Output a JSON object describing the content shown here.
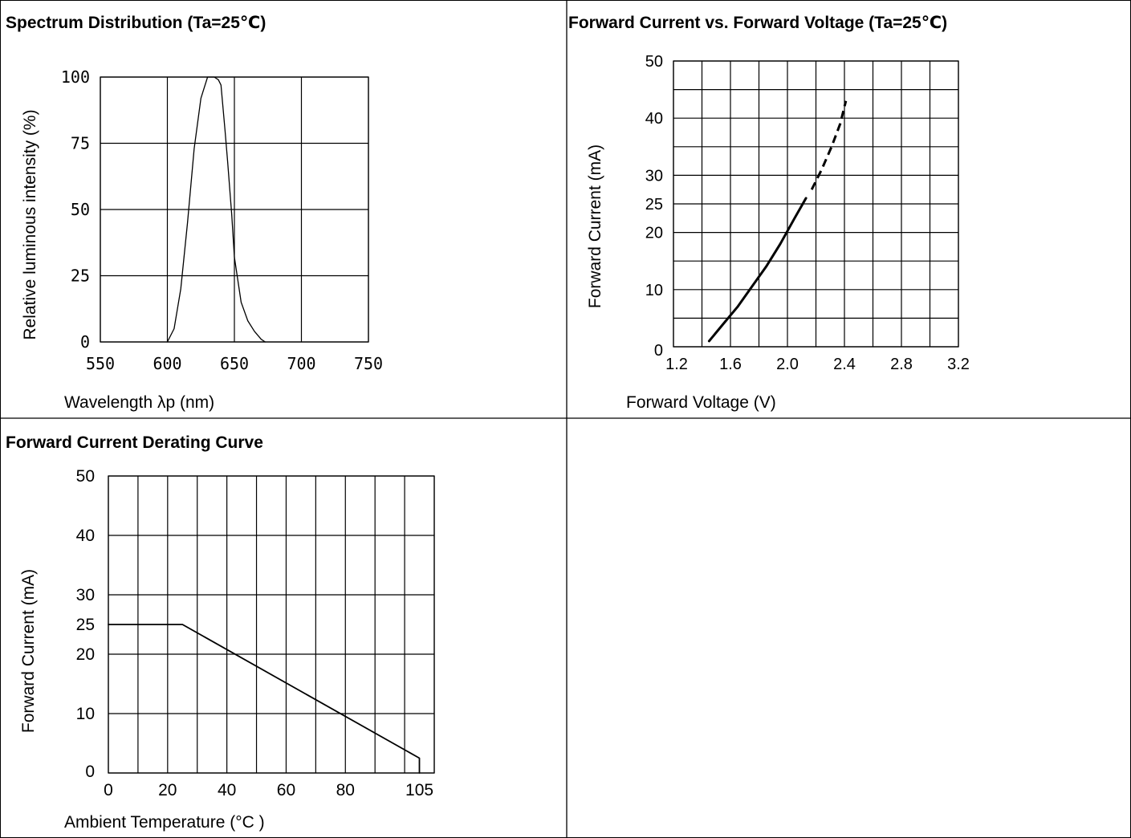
{
  "colors": {
    "background": "#ffffff",
    "ink": "#000000"
  },
  "panels": {
    "spectrum": {
      "title": "Spectrum Distribution (Ta=25℃)"
    },
    "iv": {
      "title": "Forward Current vs. Forward Voltage (Ta=25℃)"
    },
    "derating": {
      "title": "Forward Current Derating Curve"
    }
  },
  "chart_data": [
    {
      "type": "line",
      "title": "Spectrum Distribution (Ta=25℃)",
      "xlabel": "Wavelength λp (nm)",
      "ylabel": "Relative luminous intensity (%)",
      "xlim": [
        550,
        750
      ],
      "ylim": [
        0,
        100
      ],
      "xticks": [
        "550",
        "600",
        "650",
        "700",
        "750"
      ],
      "yticks": [
        "0",
        "25",
        "50",
        "75",
        "100"
      ],
      "grid": true,
      "series": [
        {
          "x": [
            600,
            605,
            610,
            615,
            620,
            625,
            630,
            633,
            635,
            638,
            640,
            643,
            645,
            648,
            650,
            655,
            660,
            665,
            670,
            673
          ],
          "y": [
            0,
            5,
            20,
            45,
            73,
            92,
            100,
            100,
            100,
            99,
            97,
            80,
            68,
            48,
            32,
            15,
            8,
            4,
            1,
            0
          ]
        }
      ]
    },
    {
      "type": "line",
      "title": "Forward Current vs. Forward Voltage (Ta=25℃)",
      "xlabel": "Forward Voltage (V)",
      "ylabel": "Forward Current (mA)",
      "xlim": [
        1.2,
        3.2
      ],
      "ylim": [
        0,
        50
      ],
      "xticks": [
        "1.2",
        "1.6",
        "2.0",
        "2.4",
        "2.8",
        "3.2"
      ],
      "yticks": [
        "0",
        "10",
        "20",
        "25",
        "30",
        "40",
        "50"
      ],
      "grid": true,
      "series": [
        {
          "style": "solid",
          "x": [
            1.45,
            1.55,
            1.65,
            1.75,
            1.85,
            1.95,
            2.05,
            2.13
          ],
          "y": [
            1,
            4,
            7,
            10.5,
            14,
            18,
            22.5,
            26
          ]
        },
        {
          "style": "dashed",
          "x": [
            2.17,
            2.24,
            2.31,
            2.37,
            2.41
          ],
          "y": [
            27.5,
            31,
            35,
            39,
            43
          ]
        }
      ]
    },
    {
      "type": "line",
      "title": "Forward Current Derating Curve",
      "xlabel": "Ambient Temperature (°C )",
      "ylabel": "Forward Current (mA)",
      "xlim": [
        0,
        110
      ],
      "ylim": [
        0,
        50
      ],
      "xticks": [
        "0",
        "20",
        "40",
        "60",
        "80",
        "105"
      ],
      "yticks": [
        "0",
        "10",
        "20",
        "25",
        "30",
        "40",
        "50"
      ],
      "grid": true,
      "series": [
        {
          "x": [
            0,
            25,
            105,
            105
          ],
          "y": [
            25,
            25,
            2.5,
            0
          ]
        }
      ]
    }
  ]
}
